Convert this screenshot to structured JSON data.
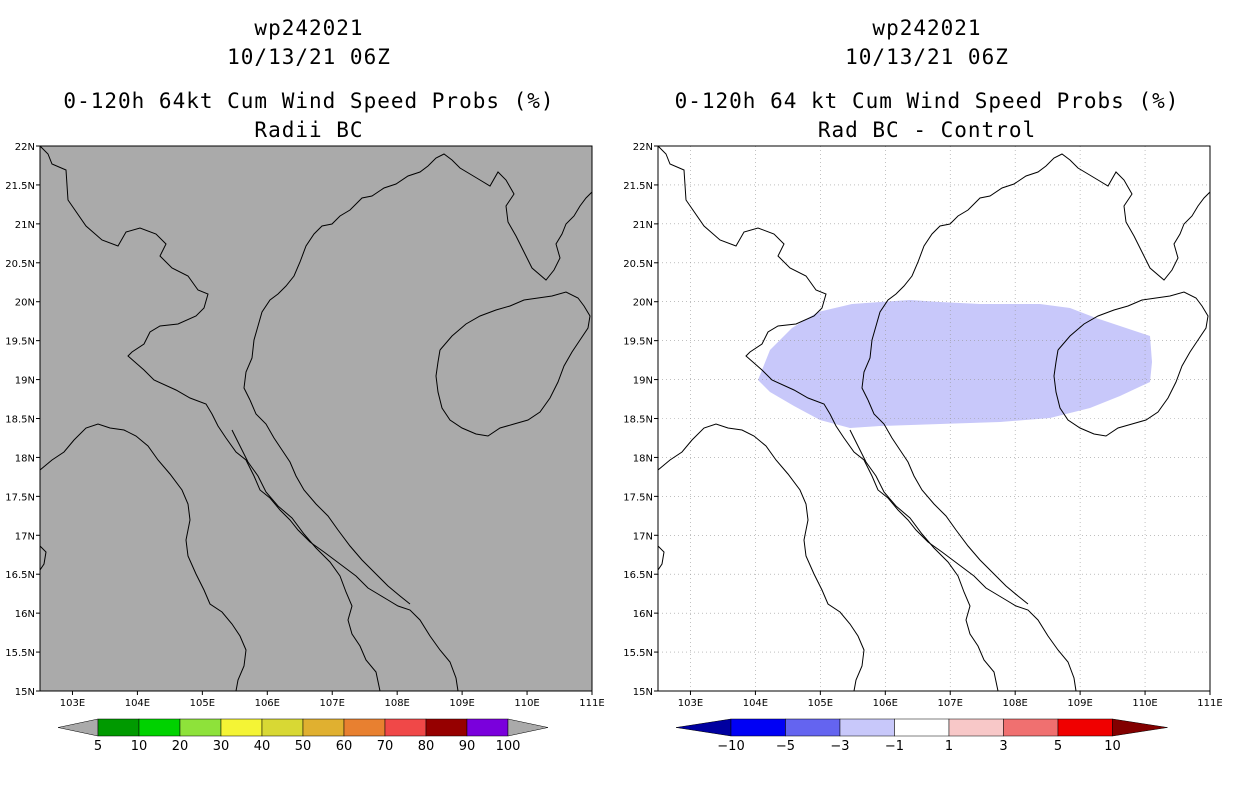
{
  "panels": [
    {
      "storm": "wp242021",
      "datetime": "10/13/21 06Z",
      "product": "0-120h 64kt Cum Wind Speed Probs (%)",
      "subtitle": "Radii BC",
      "background_color": "#aaaaaa",
      "colorbar": {
        "colors": [
          "#009a00",
          "#00d200",
          "#8ee23a",
          "#f4f435",
          "#d8d834",
          "#e0b030",
          "#e88030",
          "#f04848",
          "#960000",
          "#7a00dc"
        ],
        "labels": [
          "5",
          "10",
          "20",
          "30",
          "40",
          "50",
          "60",
          "70",
          "80",
          "90",
          "100"
        ]
      }
    },
    {
      "storm": "wp242021",
      "datetime": "10/13/21 06Z",
      "product": "0-120h 64 kt Cum Wind Speed Probs (%)",
      "subtitle": "Rad BC - Control",
      "background_color": "#ffffff",
      "shading_color": "#c8c8fa",
      "colorbar": {
        "colors": [
          "#0000a0",
          "#0000f5",
          "#6464f0",
          "#c8c8fa",
          "#ffffff",
          "#f8c8c8",
          "#f07070",
          "#f00000",
          "#820000"
        ],
        "labels": [
          "-10",
          "-5",
          "-3",
          "-1",
          "1",
          "3",
          "5",
          "10"
        ]
      }
    }
  ],
  "axes": {
    "lon_labels": [
      "103E",
      "104E",
      "105E",
      "106E",
      "107E",
      "108E",
      "109E",
      "110E",
      "111E"
    ],
    "lat_labels": [
      "22N",
      "21.5N",
      "21N",
      "20.5N",
      "20N",
      "19.5N",
      "19N",
      "18.5N",
      "18N",
      "17.5N",
      "17N",
      "16.5N",
      "16N",
      "15.5N",
      "15N"
    ]
  }
}
